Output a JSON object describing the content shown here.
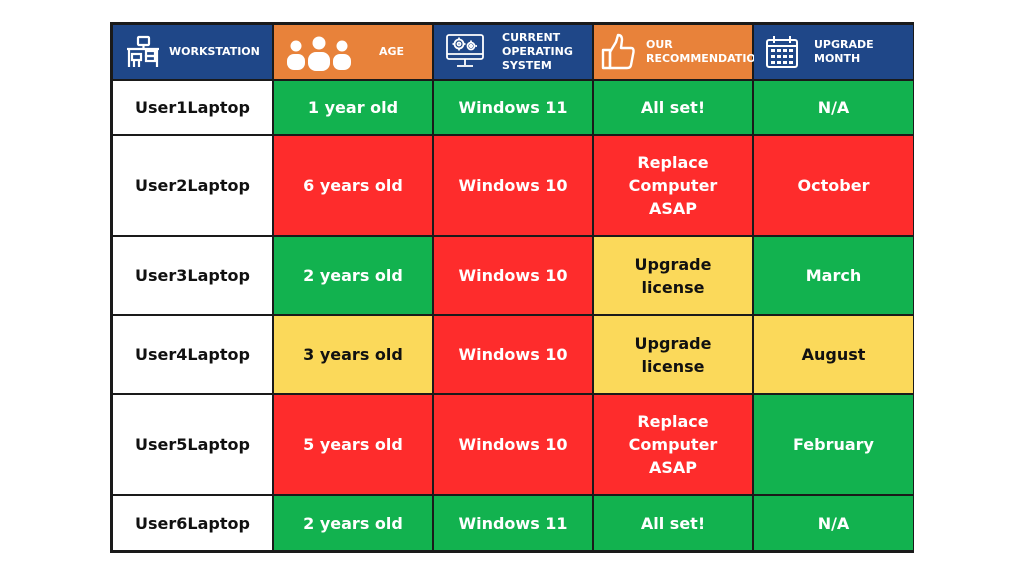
{
  "colors": {
    "header_navy": "#1f4788",
    "header_orange": "#e8823a",
    "green": "#12b24f",
    "red": "#fe2c2c",
    "yellow": "#fbd95a",
    "white": "#ffffff",
    "border": "#1a1a1a"
  },
  "header": [
    {
      "label": "WORKSTATION",
      "icon": "desk-icon",
      "color": "#1f4788"
    },
    {
      "label": "AGE",
      "icon": "people-icon",
      "color": "#e8823a"
    },
    {
      "label": "CURRENT\nOPERATING\nSYSTEM",
      "icon": "computer-gear-icon",
      "color": "#1f4788"
    },
    {
      "label": "OUR\nRECOMMENDATION",
      "icon": "thumbs-up-icon",
      "color": "#e8823a"
    },
    {
      "label": "UPGRADE\nMONTH",
      "icon": "calendar-icon",
      "color": "#1f4788"
    }
  ],
  "rows": [
    {
      "workstation": "User1Laptop",
      "age": {
        "text": "1 year old",
        "status": "green"
      },
      "os": {
        "text": "Windows 11",
        "status": "green"
      },
      "recommendation": {
        "text": "All set!",
        "status": "green"
      },
      "month": {
        "text": "N/A",
        "status": "green"
      }
    },
    {
      "workstation": "User2Laptop",
      "age": {
        "text": "6 years old",
        "status": "red"
      },
      "os": {
        "text": "Windows 10",
        "status": "red"
      },
      "recommendation": {
        "text": "Replace\nComputer\nASAP",
        "status": "red"
      },
      "month": {
        "text": "October",
        "status": "red"
      }
    },
    {
      "workstation": "User3Laptop",
      "age": {
        "text": "2 years old",
        "status": "green"
      },
      "os": {
        "text": "Windows 10",
        "status": "red"
      },
      "recommendation": {
        "text": "Upgrade\nlicense",
        "status": "yellow"
      },
      "month": {
        "text": "March",
        "status": "green"
      }
    },
    {
      "workstation": "User4Laptop",
      "age": {
        "text": "3 years old",
        "status": "yellow"
      },
      "os": {
        "text": "Windows 10",
        "status": "red"
      },
      "recommendation": {
        "text": "Upgrade\nlicense",
        "status": "yellow"
      },
      "month": {
        "text": "August",
        "status": "yellow"
      }
    },
    {
      "workstation": "User5Laptop",
      "age": {
        "text": "5 years old",
        "status": "red"
      },
      "os": {
        "text": "Windows 10",
        "status": "red"
      },
      "recommendation": {
        "text": "Replace\nComputer\nASAP",
        "status": "red"
      },
      "month": {
        "text": "February",
        "status": "green"
      }
    },
    {
      "workstation": "User6Laptop",
      "age": {
        "text": "2 years old",
        "status": "green"
      },
      "os": {
        "text": "Windows 11",
        "status": "green"
      },
      "recommendation": {
        "text": "All set!",
        "status": "green"
      },
      "month": {
        "text": "N/A",
        "status": "green"
      }
    }
  ]
}
